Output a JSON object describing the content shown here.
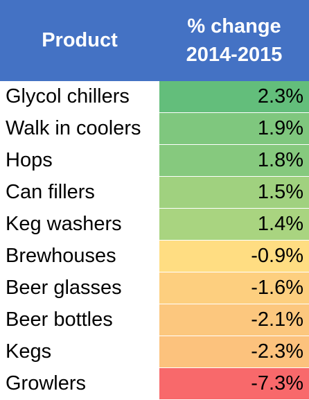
{
  "chart_data": {
    "type": "table",
    "columns": [
      "Product",
      "% change",
      "2014-2015"
    ],
    "rows": [
      {
        "product": "Glycol chillers",
        "change": "2.3%",
        "value": 2.3,
        "color": "#63be7b"
      },
      {
        "product": "Walk in coolers",
        "change": "1.9%",
        "value": 1.9,
        "color": "#7fc77e"
      },
      {
        "product": "Hops",
        "change": "1.8%",
        "value": 1.8,
        "color": "#86c97e"
      },
      {
        "product": "Can fillers",
        "change": "1.5%",
        "value": 1.5,
        "color": "#a0d17f"
      },
      {
        "product": "Keg washers",
        "change": "1.4%",
        "value": 1.4,
        "color": "#a9d480"
      },
      {
        "product": "Brewhouses",
        "change": "-0.9%",
        "value": -0.9,
        "color": "#ffdd82"
      },
      {
        "product": "Beer glasses",
        "change": "-1.6%",
        "value": -1.6,
        "color": "#fdcf7f"
      },
      {
        "product": "Beer bottles",
        "change": "-2.1%",
        "value": -2.1,
        "color": "#fcc77e"
      },
      {
        "product": "Kegs",
        "change": "-2.3%",
        "value": -2.3,
        "color": "#fcc27d"
      },
      {
        "product": "Growlers",
        "change": "-7.3%",
        "value": -7.3,
        "color": "#f8696b"
      }
    ],
    "header_color": "#4472c4"
  }
}
